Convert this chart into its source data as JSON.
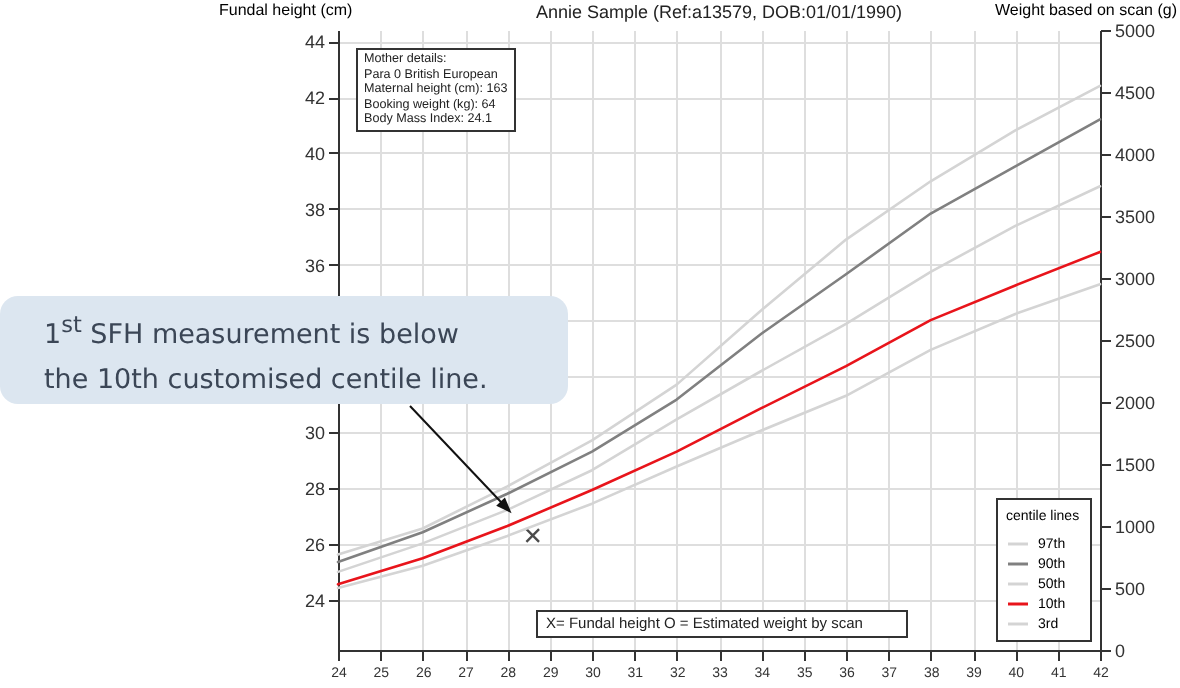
{
  "chart_data": {
    "type": "line",
    "title": "Annie Sample (Ref:a13579, DOB:01/01/1990)",
    "ylabel": "Fundal height (cm)",
    "y2label": "Weight based on scan (g)",
    "legend_title": "centile lines",
    "legend": "bottom right",
    "grid": true,
    "xlim": [
      24,
      42
    ],
    "xticks": [
      24,
      25,
      26,
      27,
      28,
      29,
      30,
      31,
      32,
      33,
      34,
      35,
      36,
      37,
      38,
      39,
      40,
      41,
      42
    ],
    "ylim": [
      22.2,
      44.4
    ],
    "yticks": [
      24,
      26,
      28,
      30,
      {
        "value": 32,
        "label": null
      },
      {
        "value": 34,
        "label": null
      },
      36,
      38,
      40,
      42,
      44
    ],
    "y2lim": [
      0,
      5000
    ],
    "y2ticks": [
      0,
      500,
      1000,
      1500,
      2000,
      2500,
      3000,
      3500,
      4000,
      4500,
      5000
    ],
    "x": [
      24,
      26,
      28,
      30,
      32,
      34,
      36,
      38,
      40,
      42
    ],
    "series": [
      {
        "name": "97th",
        "color": "#d4d4d4",
        "axis": "y2",
        "values": [
          770,
          980,
          1320,
          1690,
          2140,
          2740,
          3310,
          3780,
          4190,
          4550
        ]
      },
      {
        "name": "90th",
        "color": "#808080",
        "axis": "y2",
        "values": [
          710,
          950,
          1260,
          1600,
          2020,
          2550,
          3030,
          3520,
          3900,
          4280
        ]
      },
      {
        "name": "50th",
        "color": "#d4d4d4",
        "axis": "y2",
        "values": [
          630,
          860,
          1130,
          1450,
          1860,
          2250,
          2630,
          3050,
          3420,
          3740
        ]
      },
      {
        "name": "10th",
        "color": "#e8141b",
        "axis": "y2",
        "values": [
          530,
          740,
          1000,
          1290,
          1600,
          1950,
          2290,
          2660,
          2940,
          3210
        ]
      },
      {
        "name": "3rd",
        "color": "#d4d4d4",
        "axis": "y2",
        "values": [
          500,
          680,
          920,
          1180,
          1480,
          1770,
          2050,
          2420,
          2710,
          2950
        ]
      },
      {
        "type": "scatter",
        "marker": "cross",
        "color": "#000000",
        "x": [
          28.6
        ],
        "values": [
          26.3
        ]
      }
    ],
    "annotations": [
      "Mother details:\nPara 0  British European\nMaternal height (cm): 163\nBooking weight (kg): 64\nBody Mass Index: 24.1",
      "X= Fundal height    O = Estimated weight by scan",
      {
        "text": "1$^{st}$ SFH measurement is below\nthe 10th customised centile line.",
        "x": 28.1,
        "y": 27.1
      }
    ]
  }
}
